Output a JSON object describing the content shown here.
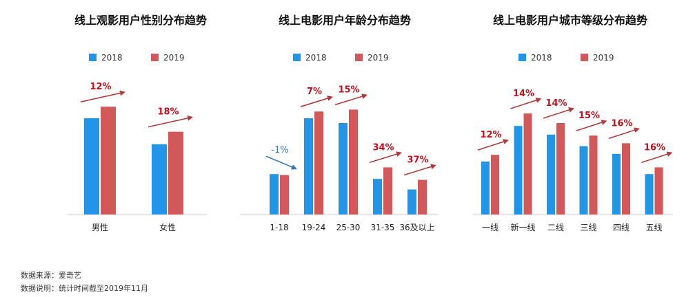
{
  "colors": {
    "y2018": "#2196e8",
    "y2019": "#d2585a",
    "up_arrow": "#b23a3a",
    "down_arrow": "#3d77b8",
    "up_label": "#c0121d",
    "down_label": "#3d77b8",
    "axis": "#cccccc"
  },
  "chart_data": [
    {
      "type": "bar",
      "title": "线上观影用户性别分布趋势",
      "categories": [
        "男性",
        "女性"
      ],
      "series": [
        {
          "name": "2018",
          "values": [
            100,
            73
          ]
        },
        {
          "name": "2019",
          "values": [
            112,
            86
          ]
        }
      ],
      "annotations": [
        {
          "text": "12%",
          "direction": "up"
        },
        {
          "text": "18%",
          "direction": "up"
        }
      ],
      "ylim": [
        0,
        140
      ],
      "legend": "top-center",
      "grid": false
    },
    {
      "type": "bar",
      "title": "线上电影用户年龄分布趋势",
      "categories": [
        "1-18",
        "19-24",
        "25-30",
        "31-35",
        "36及以上"
      ],
      "series": [
        {
          "name": "2018",
          "values": [
            42,
            100,
            95,
            37,
            26
          ]
        },
        {
          "name": "2019",
          "values": [
            41,
            107,
            109,
            49,
            36
          ]
        }
      ],
      "annotations": [
        {
          "text": "-1%",
          "direction": "down"
        },
        {
          "text": "7%",
          "direction": "up"
        },
        {
          "text": "15%",
          "direction": "up"
        },
        {
          "text": "34%",
          "direction": "up"
        },
        {
          "text": "37%",
          "direction": "up"
        }
      ],
      "ylim": [
        0,
        140
      ],
      "legend": "top-center",
      "grid": false
    },
    {
      "type": "bar",
      "title": "线上电影用户城市等级分布趋势",
      "categories": [
        "一线",
        "新一线",
        "二线",
        "三线",
        "四线",
        "五线"
      ],
      "series": [
        {
          "name": "2018",
          "values": [
            55,
            92,
            83,
            71,
            63,
            42
          ]
        },
        {
          "name": "2019",
          "values": [
            62,
            105,
            95,
            82,
            74,
            49
          ]
        }
      ],
      "annotations": [
        {
          "text": "12%",
          "direction": "up"
        },
        {
          "text": "14%",
          "direction": "up"
        },
        {
          "text": "14%",
          "direction": "up"
        },
        {
          "text": "15%",
          "direction": "up"
        },
        {
          "text": "16%",
          "direction": "up"
        },
        {
          "text": "16%",
          "direction": "up"
        }
      ],
      "ylim": [
        0,
        140
      ],
      "legend": "top-center",
      "grid": false
    }
  ],
  "footer": {
    "source": "数据来源：爱奇艺",
    "note": "数据说明：统计时间截至2019年11月"
  }
}
